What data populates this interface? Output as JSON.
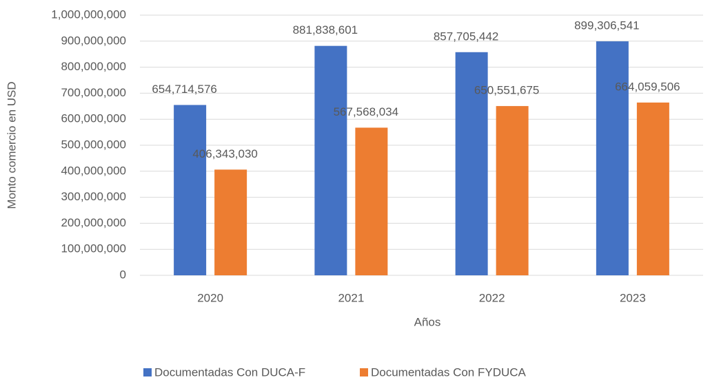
{
  "chart_data": {
    "type": "bar",
    "categories": [
      "2020",
      "2021",
      "2022",
      "2023"
    ],
    "series": [
      {
        "name": "Documentadas Con DUCA-F",
        "color": "#4472c4",
        "values": [
          654714576,
          881838601,
          857705442,
          899306541
        ],
        "value_labels": [
          "654,714,576",
          "881,838,601",
          "857,705,442",
          "899,306,541"
        ]
      },
      {
        "name": "Documentadas Con FYDUCA",
        "color": "#ed7d31",
        "values": [
          406343030,
          567568034,
          650551675,
          664059506
        ],
        "value_labels": [
          "406,343,030",
          "567,568,034",
          "650,551,675",
          "664,059,506"
        ]
      }
    ],
    "x_label": "Años",
    "y_label": "Monto comercio en USD",
    "ylim": [
      0,
      1000000000
    ],
    "yticks": [
      0,
      {
        "value": 100000000,
        "label": "100,000,000"
      },
      {
        "value": 200000000,
        "label": "200,000,000"
      },
      {
        "value": 300000000,
        "label": "300,000,000"
      },
      {
        "value": 400000000,
        "label": "400,000,000"
      },
      {
        "value": 500000000,
        "label": "500,000,000"
      },
      {
        "value": 600000000,
        "label": "600,000,000"
      },
      {
        "value": 700000000,
        "label": "700,000,000"
      },
      {
        "value": 800000000,
        "label": "800,000,000"
      },
      {
        "value": 900000000,
        "label": "900,000,000"
      },
      {
        "value": 1000000000,
        "label": "1,000,000,000"
      }
    ],
    "grid": true,
    "legend": "bottom"
  }
}
